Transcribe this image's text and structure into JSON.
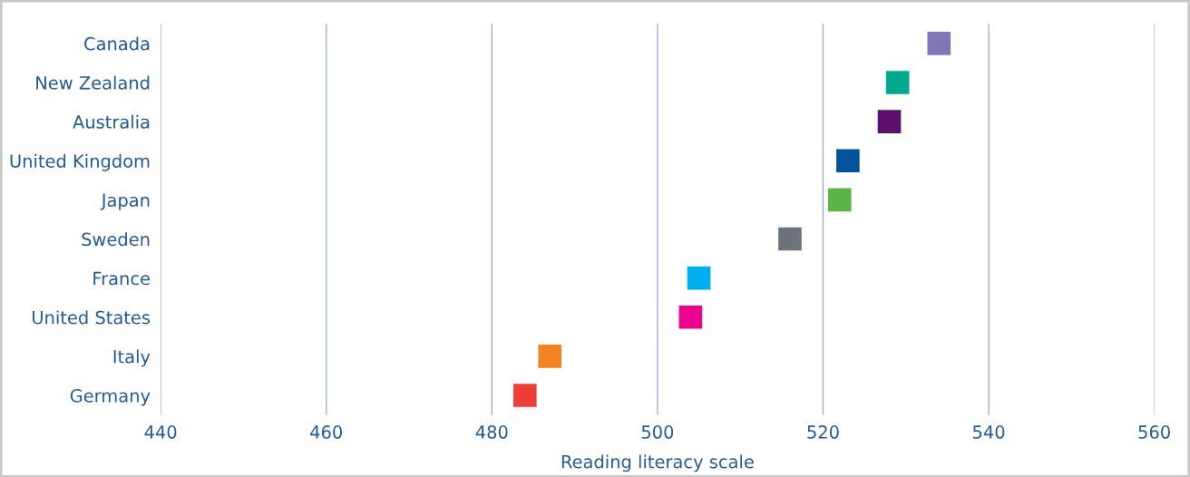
{
  "chart_data": {
    "type": "scatter",
    "orientation": "horizontal",
    "xlabel": "Reading literacy scale",
    "categories": [
      "Canada",
      "New Zealand",
      "Australia",
      "United Kingdom",
      "Japan",
      "Sweden",
      "France",
      "United States",
      "Italy",
      "Germany"
    ],
    "values": [
      534,
      529,
      528,
      523,
      522,
      516,
      505,
      504,
      487,
      484
    ],
    "colors": [
      "#7f77b8",
      "#00a88f",
      "#5c0f6b",
      "#00549a",
      "#5bb446",
      "#6d7479",
      "#00aeef",
      "#ec008c",
      "#f58220",
      "#ef3e36"
    ],
    "xlim": [
      440,
      560
    ],
    "xticks": [
      440,
      460,
      480,
      500,
      520,
      540,
      560
    ],
    "grid": "x",
    "marker": "square",
    "legend": false
  }
}
